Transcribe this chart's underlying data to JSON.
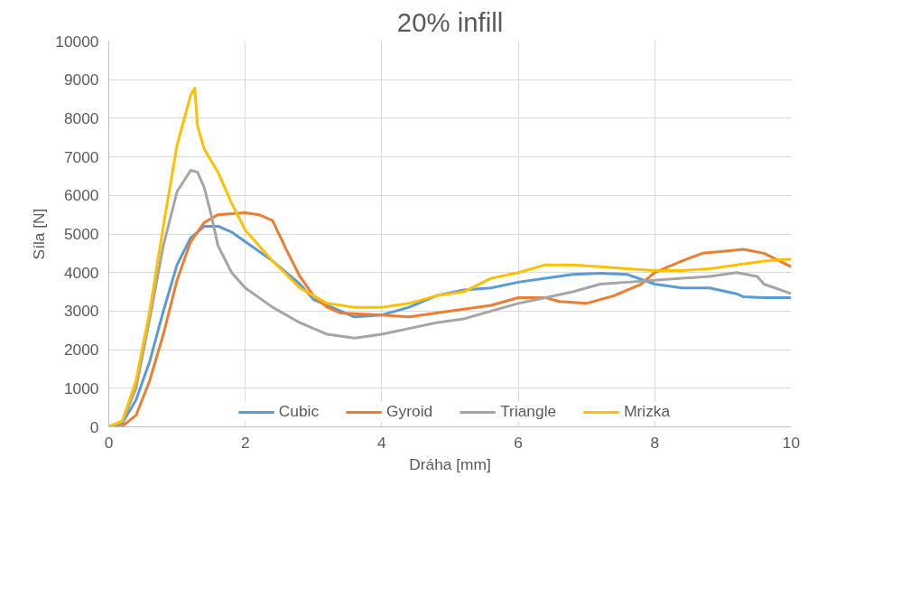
{
  "chart_data": {
    "type": "line",
    "title": "20% infill",
    "xlabel": "Dráha [mm]",
    "ylabel": "Síla [N]",
    "xlim": [
      0,
      10
    ],
    "xticks": [
      0,
      2,
      4,
      6,
      8,
      10
    ],
    "ylim": [
      0,
      10000
    ],
    "yticks": [
      0,
      1000,
      2000,
      3000,
      4000,
      5000,
      6000,
      7000,
      8000,
      9000,
      10000
    ],
    "grid": true,
    "legend": "bottom",
    "marker": "none",
    "line_style": "solid",
    "series": [
      {
        "name": "Cubic",
        "color": "#5b9bd5",
        "x": [
          0,
          0.2,
          0.4,
          0.6,
          0.8,
          1.0,
          1.2,
          1.4,
          1.6,
          1.8,
          2.0,
          2.4,
          2.8,
          3.0,
          3.4,
          3.6,
          4.0,
          4.4,
          4.8,
          5.2,
          5.6,
          6.0,
          6.4,
          6.8,
          7.2,
          7.6,
          8.0,
          8.4,
          8.8,
          9.2,
          9.3,
          9.6,
          10
        ],
        "values": [
          0,
          100,
          700,
          1700,
          3000,
          4200,
          4900,
          5200,
          5200,
          5050,
          4800,
          4300,
          3700,
          3300,
          3000,
          2850,
          2900,
          3100,
          3400,
          3550,
          3600,
          3750,
          3850,
          3950,
          3980,
          3950,
          3700,
          3600,
          3600,
          3450,
          3370,
          3350,
          3350
        ]
      },
      {
        "name": "Gyroid",
        "color": "#ed7d31",
        "x": [
          0,
          0.2,
          0.4,
          0.6,
          0.8,
          1.0,
          1.2,
          1.4,
          1.6,
          2.0,
          2.2,
          2.4,
          2.6,
          2.8,
          3.0,
          3.2,
          3.4,
          4.0,
          4.4,
          4.8,
          5.2,
          5.6,
          6.0,
          6.4,
          6.6,
          7.0,
          7.4,
          7.8,
          8.0,
          8.4,
          8.7,
          9.0,
          9.3,
          9.6,
          10
        ],
        "values": [
          0,
          20,
          300,
          1200,
          2400,
          3800,
          4800,
          5300,
          5500,
          5550,
          5500,
          5350,
          4600,
          3900,
          3400,
          3100,
          2950,
          2900,
          2850,
          2950,
          3050,
          3150,
          3350,
          3350,
          3250,
          3200,
          3400,
          3700,
          4000,
          4300,
          4500,
          4550,
          4600,
          4500,
          4150
        ]
      },
      {
        "name": "Triangle",
        "color": "#a5a5a5",
        "x": [
          0,
          0.2,
          0.4,
          0.6,
          0.8,
          1.0,
          1.2,
          1.3,
          1.4,
          1.5,
          1.6,
          1.8,
          2.0,
          2.4,
          2.8,
          3.2,
          3.6,
          4.0,
          4.4,
          4.8,
          5.2,
          5.6,
          6.0,
          6.4,
          6.8,
          7.2,
          7.6,
          8.0,
          8.4,
          8.8,
          9.2,
          9.5,
          9.6,
          10
        ],
        "values": [
          0,
          150,
          1000,
          2800,
          4700,
          6100,
          6650,
          6600,
          6200,
          5500,
          4700,
          4000,
          3600,
          3100,
          2700,
          2400,
          2300,
          2400,
          2550,
          2700,
          2800,
          3000,
          3200,
          3350,
          3500,
          3700,
          3750,
          3800,
          3850,
          3900,
          4000,
          3900,
          3700,
          3450
        ]
      },
      {
        "name": "Mrizka",
        "color": "#ffc000",
        "x": [
          0,
          0.2,
          0.4,
          0.6,
          0.8,
          1.0,
          1.2,
          1.26,
          1.3,
          1.4,
          1.6,
          1.8,
          2.0,
          2.4,
          2.8,
          3.2,
          3.6,
          4.0,
          4.4,
          4.8,
          5.2,
          5.6,
          6.0,
          6.4,
          6.8,
          7.2,
          7.6,
          8.0,
          8.4,
          8.8,
          9.2,
          9.6,
          10
        ],
        "values": [
          0,
          150,
          1200,
          3000,
          5200,
          7300,
          8600,
          8780,
          7800,
          7200,
          6600,
          5800,
          5100,
          4300,
          3600,
          3200,
          3100,
          3100,
          3200,
          3400,
          3500,
          3850,
          4000,
          4200,
          4200,
          4150,
          4100,
          4050,
          4050,
          4100,
          4200,
          4300,
          4350
        ]
      }
    ]
  }
}
